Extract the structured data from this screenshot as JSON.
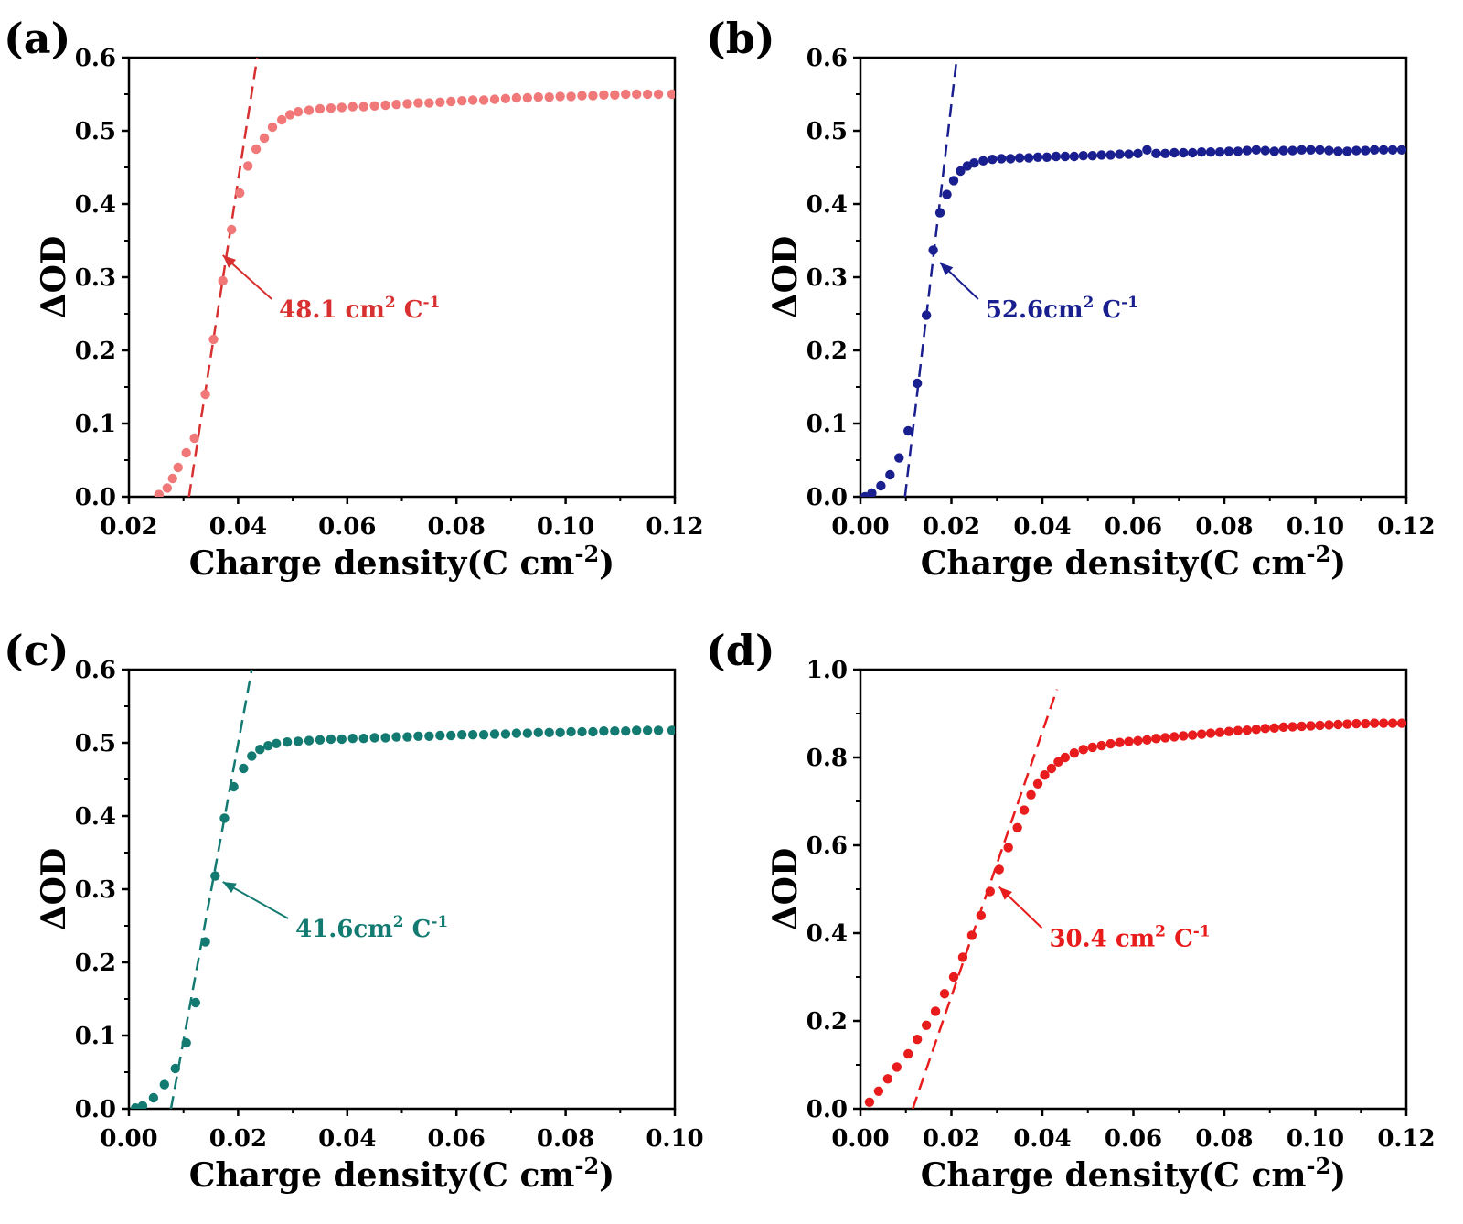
{
  "figure": {
    "panels": [
      "a",
      "b",
      "c",
      "d"
    ]
  },
  "chart_data": [
    {
      "id": "a",
      "type": "scatter",
      "panel_label": "(a)",
      "xlabel_main": "Charge density(C cm",
      "xlabel_sup": "-2",
      "xlabel_close": ")",
      "ylabel": "ΔOD",
      "xlim": [
        0.02,
        0.12
      ],
      "ylim": [
        0.0,
        0.6
      ],
      "xticks": [
        0.02,
        0.04,
        0.06,
        0.08,
        0.1,
        0.12
      ],
      "xtick_labels": [
        "0.02",
        "0.04",
        "0.06",
        "0.08",
        "0.10",
        "0.12"
      ],
      "yticks": [
        0.0,
        0.1,
        0.2,
        0.3,
        0.4,
        0.5,
        0.6
      ],
      "ytick_labels": [
        "0.0",
        "0.1",
        "0.2",
        "0.3",
        "0.4",
        "0.5",
        "0.6"
      ],
      "color": "#f07878",
      "fit_color": "#d83030",
      "fit_line": {
        "x0": 0.031,
        "y0": 0.0,
        "x1": 0.0435,
        "y1": 0.6
      },
      "annotation": {
        "value": "48.1 cm",
        "sup": "2",
        "unit": " C",
        "unit_sup": "-1",
        "color": "#d83030",
        "text_x": 0.0475,
        "text_y": 0.245,
        "arrow_to_x": 0.0372,
        "arrow_to_y": 0.33
      },
      "points": [
        [
          0.0255,
          0.003
        ],
        [
          0.027,
          0.012
        ],
        [
          0.028,
          0.025
        ],
        [
          0.029,
          0.04
        ],
        [
          0.0305,
          0.06
        ],
        [
          0.032,
          0.08
        ],
        [
          0.034,
          0.14
        ],
        [
          0.0355,
          0.215
        ],
        [
          0.0372,
          0.295
        ],
        [
          0.0388,
          0.365
        ],
        [
          0.0403,
          0.415
        ],
        [
          0.0418,
          0.452
        ],
        [
          0.0433,
          0.475
        ],
        [
          0.0448,
          0.49
        ],
        [
          0.0463,
          0.505
        ],
        [
          0.048,
          0.515
        ],
        [
          0.0495,
          0.522
        ],
        [
          0.051,
          0.526
        ],
        [
          0.053,
          0.528
        ],
        [
          0.055,
          0.53
        ],
        [
          0.057,
          0.531
        ],
        [
          0.059,
          0.532
        ],
        [
          0.061,
          0.533
        ],
        [
          0.063,
          0.533
        ],
        [
          0.065,
          0.534
        ],
        [
          0.067,
          0.535
        ],
        [
          0.069,
          0.536
        ],
        [
          0.071,
          0.537
        ],
        [
          0.073,
          0.538
        ],
        [
          0.075,
          0.538
        ],
        [
          0.077,
          0.539
        ],
        [
          0.079,
          0.54
        ],
        [
          0.081,
          0.541
        ],
        [
          0.083,
          0.542
        ],
        [
          0.085,
          0.542
        ],
        [
          0.087,
          0.543
        ],
        [
          0.089,
          0.544
        ],
        [
          0.091,
          0.545
        ],
        [
          0.093,
          0.545
        ],
        [
          0.095,
          0.546
        ],
        [
          0.097,
          0.546
        ],
        [
          0.099,
          0.547
        ],
        [
          0.101,
          0.547
        ],
        [
          0.103,
          0.548
        ],
        [
          0.105,
          0.548
        ],
        [
          0.107,
          0.549
        ],
        [
          0.109,
          0.549
        ],
        [
          0.111,
          0.55
        ],
        [
          0.113,
          0.55
        ],
        [
          0.115,
          0.55
        ],
        [
          0.117,
          0.55
        ],
        [
          0.1195,
          0.55
        ]
      ]
    },
    {
      "id": "b",
      "type": "scatter",
      "panel_label": "(b)",
      "xlabel_main": "Charge density(C cm",
      "xlabel_sup": "-2",
      "xlabel_close": ")",
      "ylabel": "ΔOD",
      "xlim": [
        0.0,
        0.12
      ],
      "ylim": [
        0.0,
        0.6
      ],
      "xticks": [
        0.0,
        0.02,
        0.04,
        0.06,
        0.08,
        0.1,
        0.12
      ],
      "xtick_labels": [
        "0.00",
        "0.02",
        "0.04",
        "0.06",
        "0.08",
        "0.10",
        "0.12"
      ],
      "yticks": [
        0.0,
        0.1,
        0.2,
        0.3,
        0.4,
        0.5,
        0.6
      ],
      "ytick_labels": [
        "0.0",
        "0.1",
        "0.2",
        "0.3",
        "0.4",
        "0.5",
        "0.6"
      ],
      "color": "#1a1f8f",
      "fit_color": "#1a1f8f",
      "fit_line": {
        "x0": 0.0098,
        "y0": 0.0,
        "x1": 0.0212,
        "y1": 0.6
      },
      "annotation": {
        "value": "52.6cm",
        "sup": "2",
        "unit": " C",
        "unit_sup": "-1",
        "color": "#1a1f8f",
        "text_x": 0.0275,
        "text_y": 0.245,
        "arrow_to_x": 0.0175,
        "arrow_to_y": 0.32
      },
      "points": [
        [
          0.001,
          0.0
        ],
        [
          0.0025,
          0.005
        ],
        [
          0.0045,
          0.015
        ],
        [
          0.0065,
          0.03
        ],
        [
          0.0085,
          0.053
        ],
        [
          0.0105,
          0.09
        ],
        [
          0.0125,
          0.155
        ],
        [
          0.0145,
          0.248
        ],
        [
          0.016,
          0.337
        ],
        [
          0.0175,
          0.388
        ],
        [
          0.019,
          0.413
        ],
        [
          0.0205,
          0.432
        ],
        [
          0.022,
          0.445
        ],
        [
          0.0235,
          0.452
        ],
        [
          0.025,
          0.456
        ],
        [
          0.027,
          0.459
        ],
        [
          0.029,
          0.461
        ],
        [
          0.031,
          0.462
        ],
        [
          0.033,
          0.462
        ],
        [
          0.035,
          0.463
        ],
        [
          0.037,
          0.463
        ],
        [
          0.039,
          0.464
        ],
        [
          0.041,
          0.464
        ],
        [
          0.043,
          0.465
        ],
        [
          0.045,
          0.465
        ],
        [
          0.047,
          0.465
        ],
        [
          0.049,
          0.466
        ],
        [
          0.051,
          0.466
        ],
        [
          0.053,
          0.467
        ],
        [
          0.055,
          0.467
        ],
        [
          0.057,
          0.468
        ],
        [
          0.059,
          0.468
        ],
        [
          0.061,
          0.469
        ],
        [
          0.063,
          0.474
        ],
        [
          0.065,
          0.469
        ],
        [
          0.067,
          0.469
        ],
        [
          0.069,
          0.47
        ],
        [
          0.071,
          0.47
        ],
        [
          0.073,
          0.47
        ],
        [
          0.075,
          0.471
        ],
        [
          0.077,
          0.471
        ],
        [
          0.079,
          0.471
        ],
        [
          0.081,
          0.472
        ],
        [
          0.083,
          0.472
        ],
        [
          0.085,
          0.473
        ],
        [
          0.087,
          0.474
        ],
        [
          0.089,
          0.473
        ],
        [
          0.091,
          0.472
        ],
        [
          0.093,
          0.473
        ],
        [
          0.095,
          0.473
        ],
        [
          0.097,
          0.474
        ],
        [
          0.099,
          0.474
        ],
        [
          0.101,
          0.474
        ],
        [
          0.103,
          0.473
        ],
        [
          0.105,
          0.472
        ],
        [
          0.107,
          0.472
        ],
        [
          0.109,
          0.473
        ],
        [
          0.111,
          0.473
        ],
        [
          0.113,
          0.474
        ],
        [
          0.115,
          0.474
        ],
        [
          0.117,
          0.474
        ],
        [
          0.119,
          0.474
        ]
      ]
    },
    {
      "id": "c",
      "type": "scatter",
      "panel_label": "(c)",
      "xlabel_main": "Charge density(C cm",
      "xlabel_sup": "-2",
      "xlabel_close": ")",
      "ylabel": "ΔOD",
      "xlim": [
        0.0,
        0.1
      ],
      "ylim": [
        0.0,
        0.6
      ],
      "xticks": [
        0.0,
        0.02,
        0.04,
        0.06,
        0.08,
        0.1
      ],
      "xtick_labels": [
        "0.00",
        "0.02",
        "0.04",
        "0.06",
        "0.08",
        "0.10"
      ],
      "yticks": [
        0.0,
        0.1,
        0.2,
        0.3,
        0.4,
        0.5,
        0.6
      ],
      "ytick_labels": [
        "0.0",
        "0.1",
        "0.2",
        "0.3",
        "0.4",
        "0.5",
        "0.6"
      ],
      "color": "#127a70",
      "fit_color": "#127a70",
      "fit_line": {
        "x0": 0.0077,
        "y0": 0.0,
        "x1": 0.0225,
        "y1": 0.6
      },
      "annotation": {
        "value": "41.6cm",
        "sup": "2",
        "unit": " C",
        "unit_sup": "-1",
        "color": "#127a70",
        "text_x": 0.0305,
        "text_y": 0.235,
        "arrow_to_x": 0.0172,
        "arrow_to_y": 0.31
      },
      "points": [
        [
          0.0012,
          0.001
        ],
        [
          0.0025,
          0.004
        ],
        [
          0.0045,
          0.015
        ],
        [
          0.0065,
          0.033
        ],
        [
          0.0085,
          0.055
        ],
        [
          0.0105,
          0.09
        ],
        [
          0.0122,
          0.145
        ],
        [
          0.014,
          0.228
        ],
        [
          0.0158,
          0.318
        ],
        [
          0.0175,
          0.397
        ],
        [
          0.0192,
          0.44
        ],
        [
          0.021,
          0.465
        ],
        [
          0.0225,
          0.482
        ],
        [
          0.024,
          0.491
        ],
        [
          0.0255,
          0.496
        ],
        [
          0.027,
          0.499
        ],
        [
          0.029,
          0.501
        ],
        [
          0.031,
          0.502
        ],
        [
          0.033,
          0.503
        ],
        [
          0.035,
          0.504
        ],
        [
          0.037,
          0.505
        ],
        [
          0.039,
          0.505
        ],
        [
          0.041,
          0.506
        ],
        [
          0.043,
          0.506
        ],
        [
          0.045,
          0.507
        ],
        [
          0.047,
          0.507
        ],
        [
          0.049,
          0.508
        ],
        [
          0.051,
          0.508
        ],
        [
          0.053,
          0.509
        ],
        [
          0.055,
          0.509
        ],
        [
          0.057,
          0.51
        ],
        [
          0.059,
          0.51
        ],
        [
          0.061,
          0.511
        ],
        [
          0.063,
          0.511
        ],
        [
          0.065,
          0.511
        ],
        [
          0.067,
          0.512
        ],
        [
          0.069,
          0.512
        ],
        [
          0.071,
          0.513
        ],
        [
          0.073,
          0.513
        ],
        [
          0.075,
          0.514
        ],
        [
          0.077,
          0.514
        ],
        [
          0.079,
          0.514
        ],
        [
          0.081,
          0.515
        ],
        [
          0.083,
          0.515
        ],
        [
          0.085,
          0.515
        ],
        [
          0.087,
          0.516
        ],
        [
          0.089,
          0.516
        ],
        [
          0.091,
          0.516
        ],
        [
          0.093,
          0.517
        ],
        [
          0.095,
          0.517
        ],
        [
          0.097,
          0.517
        ],
        [
          0.0995,
          0.517
        ]
      ]
    },
    {
      "id": "d",
      "type": "scatter",
      "panel_label": "(d)",
      "xlabel_main": "Charge density(C cm",
      "xlabel_sup": "-2",
      "xlabel_close": ")",
      "ylabel": "ΔOD",
      "xlim": [
        0.0,
        0.12
      ],
      "ylim": [
        0.0,
        1.0
      ],
      "xticks": [
        0.0,
        0.02,
        0.04,
        0.06,
        0.08,
        0.1,
        0.12
      ],
      "xtick_labels": [
        "0.00",
        "0.02",
        "0.04",
        "0.06",
        "0.08",
        "0.10",
        "0.12"
      ],
      "yticks": [
        0.0,
        0.2,
        0.4,
        0.6,
        0.8,
        1.0
      ],
      "ytick_labels": [
        "0.0",
        "0.2",
        "0.4",
        "0.6",
        "0.8",
        "1.0"
      ],
      "color": "#e81c1c",
      "fit_color": "#e81c1c",
      "fit_line": {
        "x0": 0.0115,
        "y0": 0.0,
        "x1": 0.0432,
        "y1": 0.955
      },
      "annotation": {
        "value": "30.4 cm",
        "sup": "2",
        "unit": " C",
        "unit_sup": "-1",
        "color": "#e81c1c",
        "text_x": 0.0415,
        "text_y": 0.37,
        "arrow_to_x": 0.0305,
        "arrow_to_y": 0.505
      },
      "points": [
        [
          0.002,
          0.015
        ],
        [
          0.004,
          0.04
        ],
        [
          0.006,
          0.068
        ],
        [
          0.008,
          0.095
        ],
        [
          0.0105,
          0.125
        ],
        [
          0.0125,
          0.158
        ],
        [
          0.0145,
          0.19
        ],
        [
          0.0165,
          0.222
        ],
        [
          0.0185,
          0.262
        ],
        [
          0.0205,
          0.3
        ],
        [
          0.0225,
          0.345
        ],
        [
          0.0245,
          0.395
        ],
        [
          0.0265,
          0.44
        ],
        [
          0.0285,
          0.495
        ],
        [
          0.0305,
          0.545
        ],
        [
          0.0325,
          0.595
        ],
        [
          0.0345,
          0.64
        ],
        [
          0.036,
          0.68
        ],
        [
          0.0375,
          0.715
        ],
        [
          0.039,
          0.74
        ],
        [
          0.0405,
          0.76
        ],
        [
          0.042,
          0.775
        ],
        [
          0.0435,
          0.79
        ],
        [
          0.045,
          0.8
        ],
        [
          0.047,
          0.81
        ],
        [
          0.049,
          0.818
        ],
        [
          0.051,
          0.823
        ],
        [
          0.053,
          0.827
        ],
        [
          0.055,
          0.831
        ],
        [
          0.057,
          0.834
        ],
        [
          0.059,
          0.836
        ],
        [
          0.061,
          0.838
        ],
        [
          0.063,
          0.84
        ],
        [
          0.065,
          0.843
        ],
        [
          0.067,
          0.845
        ],
        [
          0.069,
          0.847
        ],
        [
          0.071,
          0.849
        ],
        [
          0.073,
          0.851
        ],
        [
          0.075,
          0.853
        ],
        [
          0.077,
          0.855
        ],
        [
          0.079,
          0.857
        ],
        [
          0.081,
          0.859
        ],
        [
          0.083,
          0.861
        ],
        [
          0.085,
          0.862
        ],
        [
          0.087,
          0.864
        ],
        [
          0.089,
          0.866
        ],
        [
          0.091,
          0.867
        ],
        [
          0.093,
          0.869
        ],
        [
          0.095,
          0.87
        ],
        [
          0.097,
          0.871
        ],
        [
          0.099,
          0.872
        ],
        [
          0.101,
          0.873
        ],
        [
          0.103,
          0.874
        ],
        [
          0.105,
          0.875
        ],
        [
          0.107,
          0.876
        ],
        [
          0.109,
          0.877
        ],
        [
          0.111,
          0.877
        ],
        [
          0.113,
          0.878
        ],
        [
          0.115,
          0.878
        ],
        [
          0.117,
          0.878
        ],
        [
          0.119,
          0.878
        ]
      ]
    }
  ]
}
